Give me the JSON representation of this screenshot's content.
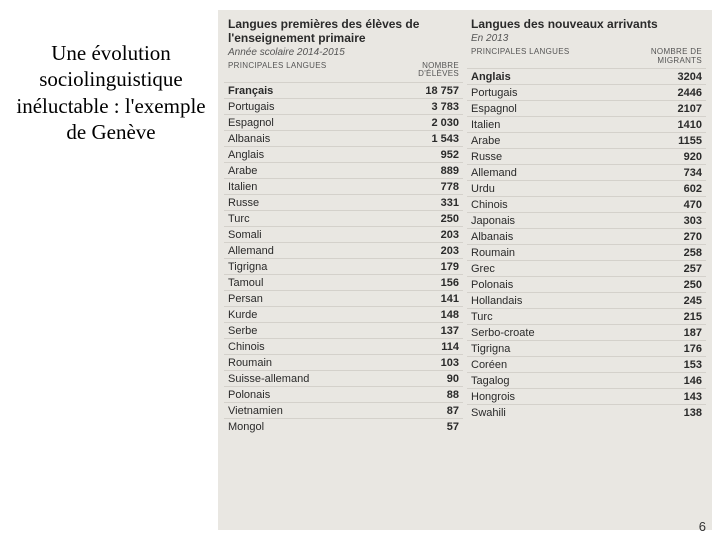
{
  "title": "Une évolution sociolinguistique inéluctable : l'exemple de Genève",
  "pageNumber": "6",
  "tables": {
    "left": {
      "title": "Langues premières des élèves de l'enseignement primaire",
      "subtitle": "Année scolaire 2014-2015",
      "col1": "PRINCIPALES LANGUES",
      "col2": "NOMBRE D'ÉLÈVES",
      "rows": [
        {
          "lang": "Français",
          "val": "18 757"
        },
        {
          "lang": "Portugais",
          "val": "3 783"
        },
        {
          "lang": "Espagnol",
          "val": "2 030"
        },
        {
          "lang": "Albanais",
          "val": "1 543"
        },
        {
          "lang": "Anglais",
          "val": "952"
        },
        {
          "lang": "Arabe",
          "val": "889"
        },
        {
          "lang": "Italien",
          "val": "778"
        },
        {
          "lang": "Russe",
          "val": "331"
        },
        {
          "lang": "Turc",
          "val": "250"
        },
        {
          "lang": "Somali",
          "val": "203"
        },
        {
          "lang": "Allemand",
          "val": "203"
        },
        {
          "lang": "Tigrigna",
          "val": "179"
        },
        {
          "lang": "Tamoul",
          "val": "156"
        },
        {
          "lang": "Persan",
          "val": "141"
        },
        {
          "lang": "Kurde",
          "val": "148"
        },
        {
          "lang": "Serbe",
          "val": "137"
        },
        {
          "lang": "Chinois",
          "val": "114"
        },
        {
          "lang": "Roumain",
          "val": "103"
        },
        {
          "lang": "Suisse-allemand",
          "val": "90"
        },
        {
          "lang": "Polonais",
          "val": "88"
        },
        {
          "lang": "Vietnamien",
          "val": "87"
        },
        {
          "lang": "Mongol",
          "val": "57"
        }
      ]
    },
    "right": {
      "title": "Langues des nouveaux arrivants",
      "subtitle": "En 2013",
      "col1": "PRINCIPALES LANGUES",
      "col2": "NOMBRE DE MIGRANTS",
      "rows": [
        {
          "lang": "Anglais",
          "val": "3204"
        },
        {
          "lang": "Portugais",
          "val": "2446"
        },
        {
          "lang": "Espagnol",
          "val": "2107"
        },
        {
          "lang": "Italien",
          "val": "1410"
        },
        {
          "lang": "Arabe",
          "val": "1155"
        },
        {
          "lang": "Russe",
          "val": "920"
        },
        {
          "lang": "Allemand",
          "val": "734"
        },
        {
          "lang": "Urdu",
          "val": "602"
        },
        {
          "lang": "Chinois",
          "val": "470"
        },
        {
          "lang": "Japonais",
          "val": "303"
        },
        {
          "lang": "Albanais",
          "val": "270"
        },
        {
          "lang": "Roumain",
          "val": "258"
        },
        {
          "lang": "Grec",
          "val": "257"
        },
        {
          "lang": "Polonais",
          "val": "250"
        },
        {
          "lang": "Hollandais",
          "val": "245"
        },
        {
          "lang": "Turc",
          "val": "215"
        },
        {
          "lang": "Serbo-croate",
          "val": "187"
        },
        {
          "lang": "Tigrigna",
          "val": "176"
        },
        {
          "lang": "Coréen",
          "val": "153"
        },
        {
          "lang": "Tagalog",
          "val": "146"
        },
        {
          "lang": "Hongrois",
          "val": "143"
        },
        {
          "lang": "Swahili",
          "val": "138"
        }
      ]
    }
  }
}
